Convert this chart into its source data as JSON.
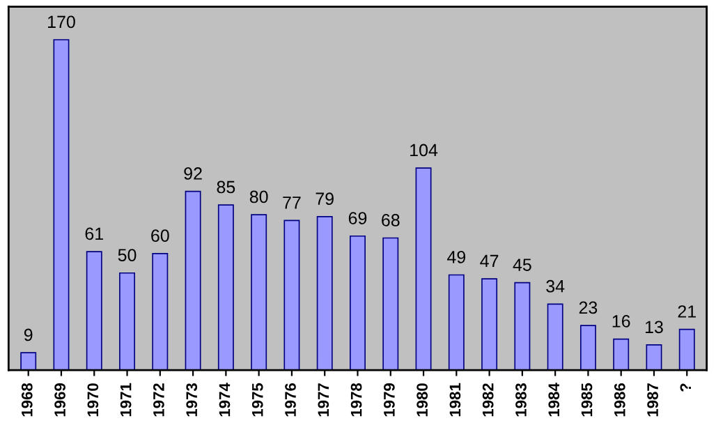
{
  "chart_data": {
    "type": "bar",
    "categories": [
      "1968",
      "1969",
      "1970",
      "1971",
      "1972",
      "1973",
      "1974",
      "1975",
      "1976",
      "1977",
      "1978",
      "1979",
      "1980",
      "1981",
      "1982",
      "1983",
      "1984",
      "1985",
      "1986",
      "1987",
      "?"
    ],
    "values": [
      9,
      170,
      61,
      50,
      60,
      92,
      85,
      80,
      77,
      79,
      69,
      68,
      104,
      49,
      47,
      45,
      34,
      23,
      16,
      13,
      21
    ],
    "color": "#9999ff",
    "data_labels": true,
    "grid": false,
    "legend": false
  }
}
